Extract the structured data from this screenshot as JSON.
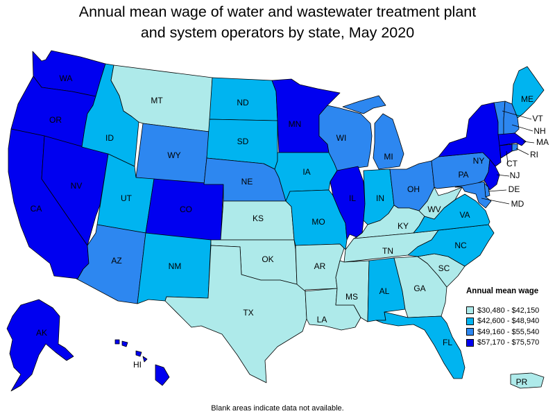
{
  "title_line1": "Annual mean wage of water and wastewater treatment plant",
  "title_line2": "and system operators by state, May 2020",
  "colors": {
    "c1": "#aeeaea",
    "c2": "#00b4f0",
    "c3": "#2d87f0",
    "c4": "#0000f0"
  },
  "legend": {
    "title": "Annual mean wage",
    "items": [
      {
        "label": "$30,480 - $42,150",
        "color": "#aeeaea"
      },
      {
        "label": "$42,600 - $48,940",
        "color": "#00b4f0"
      },
      {
        "label": "$49,160 - $55,540",
        "color": "#2d87f0"
      },
      {
        "label": "$57,170 - $75,570",
        "color": "#0000f0"
      }
    ]
  },
  "states": [
    {
      "code": "WA",
      "class": "c4"
    },
    {
      "code": "OR",
      "class": "c4"
    },
    {
      "code": "CA",
      "class": "c4"
    },
    {
      "code": "NV",
      "class": "c4"
    },
    {
      "code": "ID",
      "class": "c2"
    },
    {
      "code": "MT",
      "class": "c1"
    },
    {
      "code": "WY",
      "class": "c3"
    },
    {
      "code": "UT",
      "class": "c2"
    },
    {
      "code": "AZ",
      "class": "c3"
    },
    {
      "code": "CO",
      "class": "c4"
    },
    {
      "code": "NM",
      "class": "c2"
    },
    {
      "code": "ND",
      "class": "c2"
    },
    {
      "code": "SD",
      "class": "c2"
    },
    {
      "code": "NE",
      "class": "c3"
    },
    {
      "code": "KS",
      "class": "c1"
    },
    {
      "code": "OK",
      "class": "c1"
    },
    {
      "code": "TX",
      "class": "c1"
    },
    {
      "code": "MN",
      "class": "c4"
    },
    {
      "code": "IA",
      "class": "c2"
    },
    {
      "code": "MO",
      "class": "c2"
    },
    {
      "code": "AR",
      "class": "c1"
    },
    {
      "code": "LA",
      "class": "c1"
    },
    {
      "code": "WI",
      "class": "c3"
    },
    {
      "code": "IL",
      "class": "c4"
    },
    {
      "code": "MI",
      "class": "c3"
    },
    {
      "code": "IN",
      "class": "c2"
    },
    {
      "code": "OH",
      "class": "c3"
    },
    {
      "code": "KY",
      "class": "c1"
    },
    {
      "code": "TN",
      "class": "c1"
    },
    {
      "code": "MS",
      "class": "c1"
    },
    {
      "code": "AL",
      "class": "c2"
    },
    {
      "code": "GA",
      "class": "c1"
    },
    {
      "code": "FL",
      "class": "c2"
    },
    {
      "code": "SC",
      "class": "c1"
    },
    {
      "code": "NC",
      "class": "c2"
    },
    {
      "code": "VA",
      "class": "c2"
    },
    {
      "code": "WV",
      "class": "c1"
    },
    {
      "code": "PA",
      "class": "c3"
    },
    {
      "code": "NY",
      "class": "c4"
    },
    {
      "code": "ME",
      "class": "c2"
    },
    {
      "code": "VT",
      "class": "c3"
    },
    {
      "code": "NH",
      "class": "c3"
    },
    {
      "code": "MA",
      "class": "c4"
    },
    {
      "code": "RI",
      "class": "c3"
    },
    {
      "code": "CT",
      "class": "c4"
    },
    {
      "code": "NJ",
      "class": "c4"
    },
    {
      "code": "DE",
      "class": "c3"
    },
    {
      "code": "MD",
      "class": "c3"
    },
    {
      "code": "AK",
      "class": "c4"
    },
    {
      "code": "HI",
      "class": "c4"
    },
    {
      "code": "PR",
      "class": "c1"
    }
  ],
  "footnote": "Blank areas indicate data not available."
}
